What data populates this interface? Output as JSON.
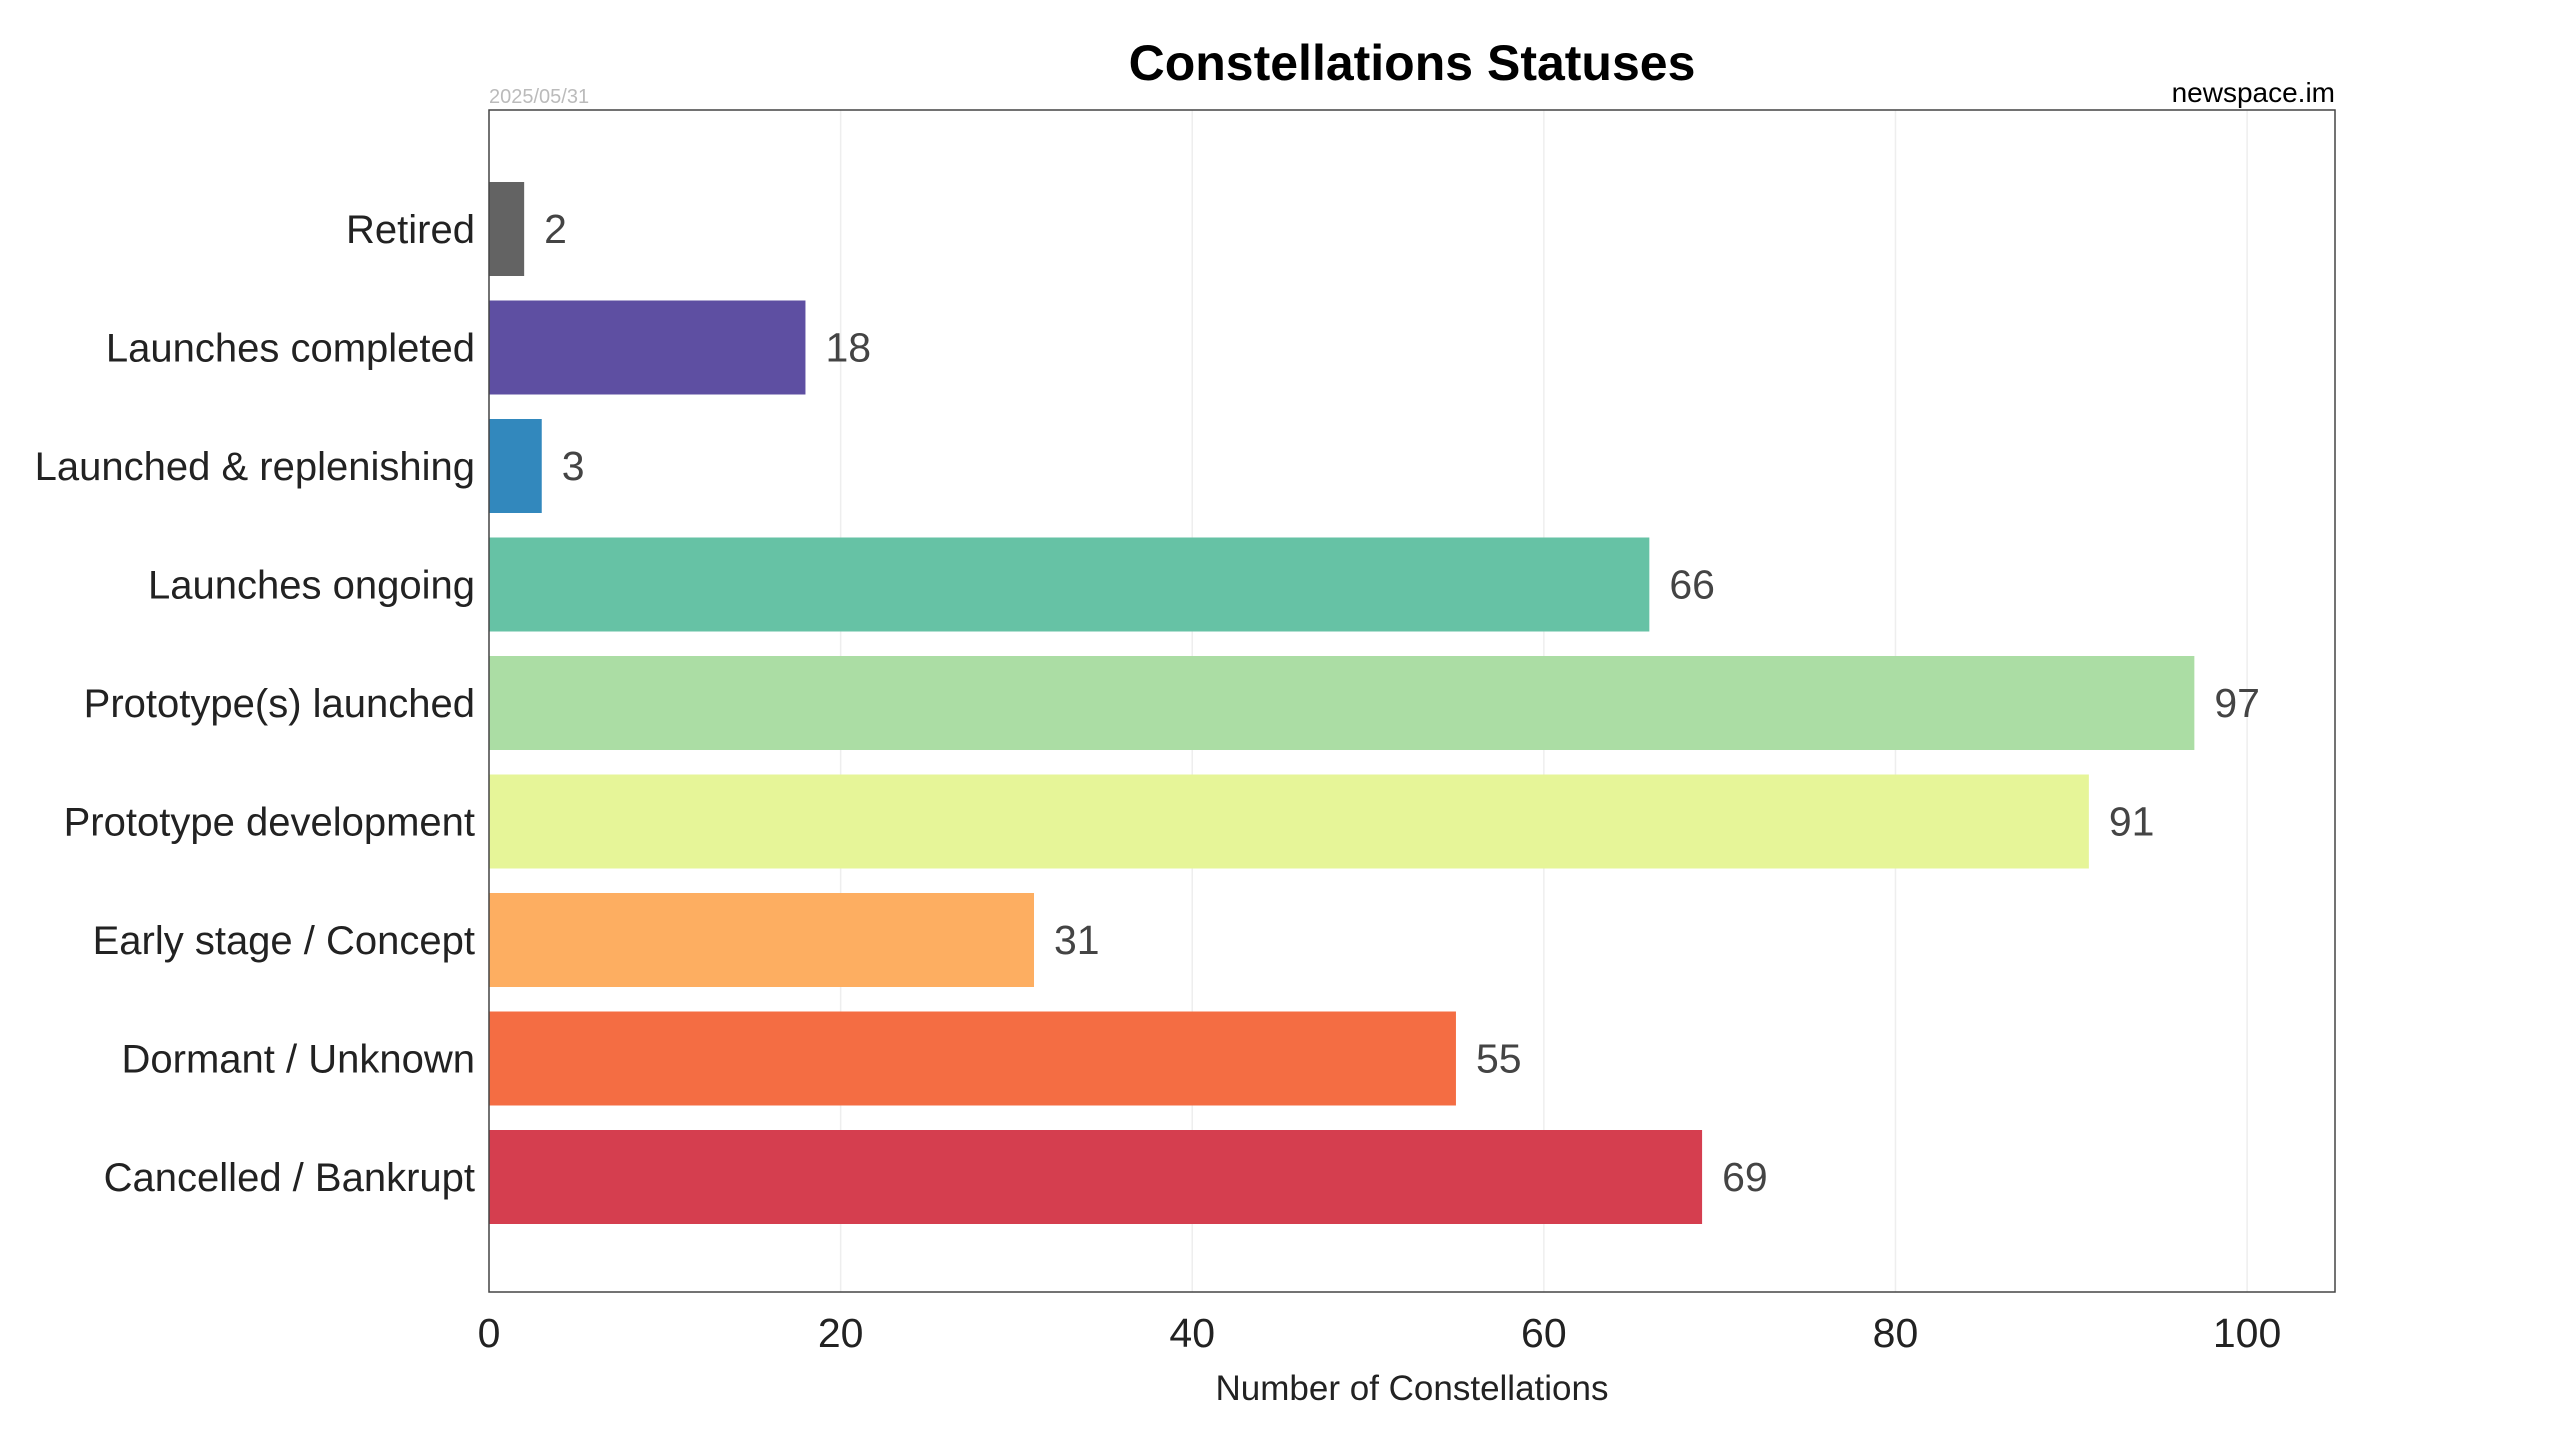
{
  "chart_data": {
    "type": "bar",
    "orientation": "horizontal",
    "title": "Constellations Statuses",
    "date_label": "2025/05/31",
    "source_label": "newspace.im",
    "xlabel": "Number of Constellations",
    "ylabel": "",
    "xlim": [
      0,
      105
    ],
    "xticks": [
      0,
      20,
      40,
      60,
      80,
      100
    ],
    "grid": "vertical",
    "categories": [
      "Retired",
      "Launches completed",
      "Launched & replenishing",
      "Launches ongoing",
      "Prototype(s) launched",
      "Prototype development",
      "Early stage / Concept",
      "Dormant / Unknown",
      "Cancelled / Bankrupt"
    ],
    "values": [
      2,
      18,
      3,
      66,
      97,
      91,
      31,
      55,
      69
    ],
    "colors": [
      "#636363",
      "#5e4fa2",
      "#3288bd",
      "#66c2a5",
      "#abdda4",
      "#e6f598",
      "#fdae61",
      "#f46d43",
      "#d53e4f"
    ]
  }
}
